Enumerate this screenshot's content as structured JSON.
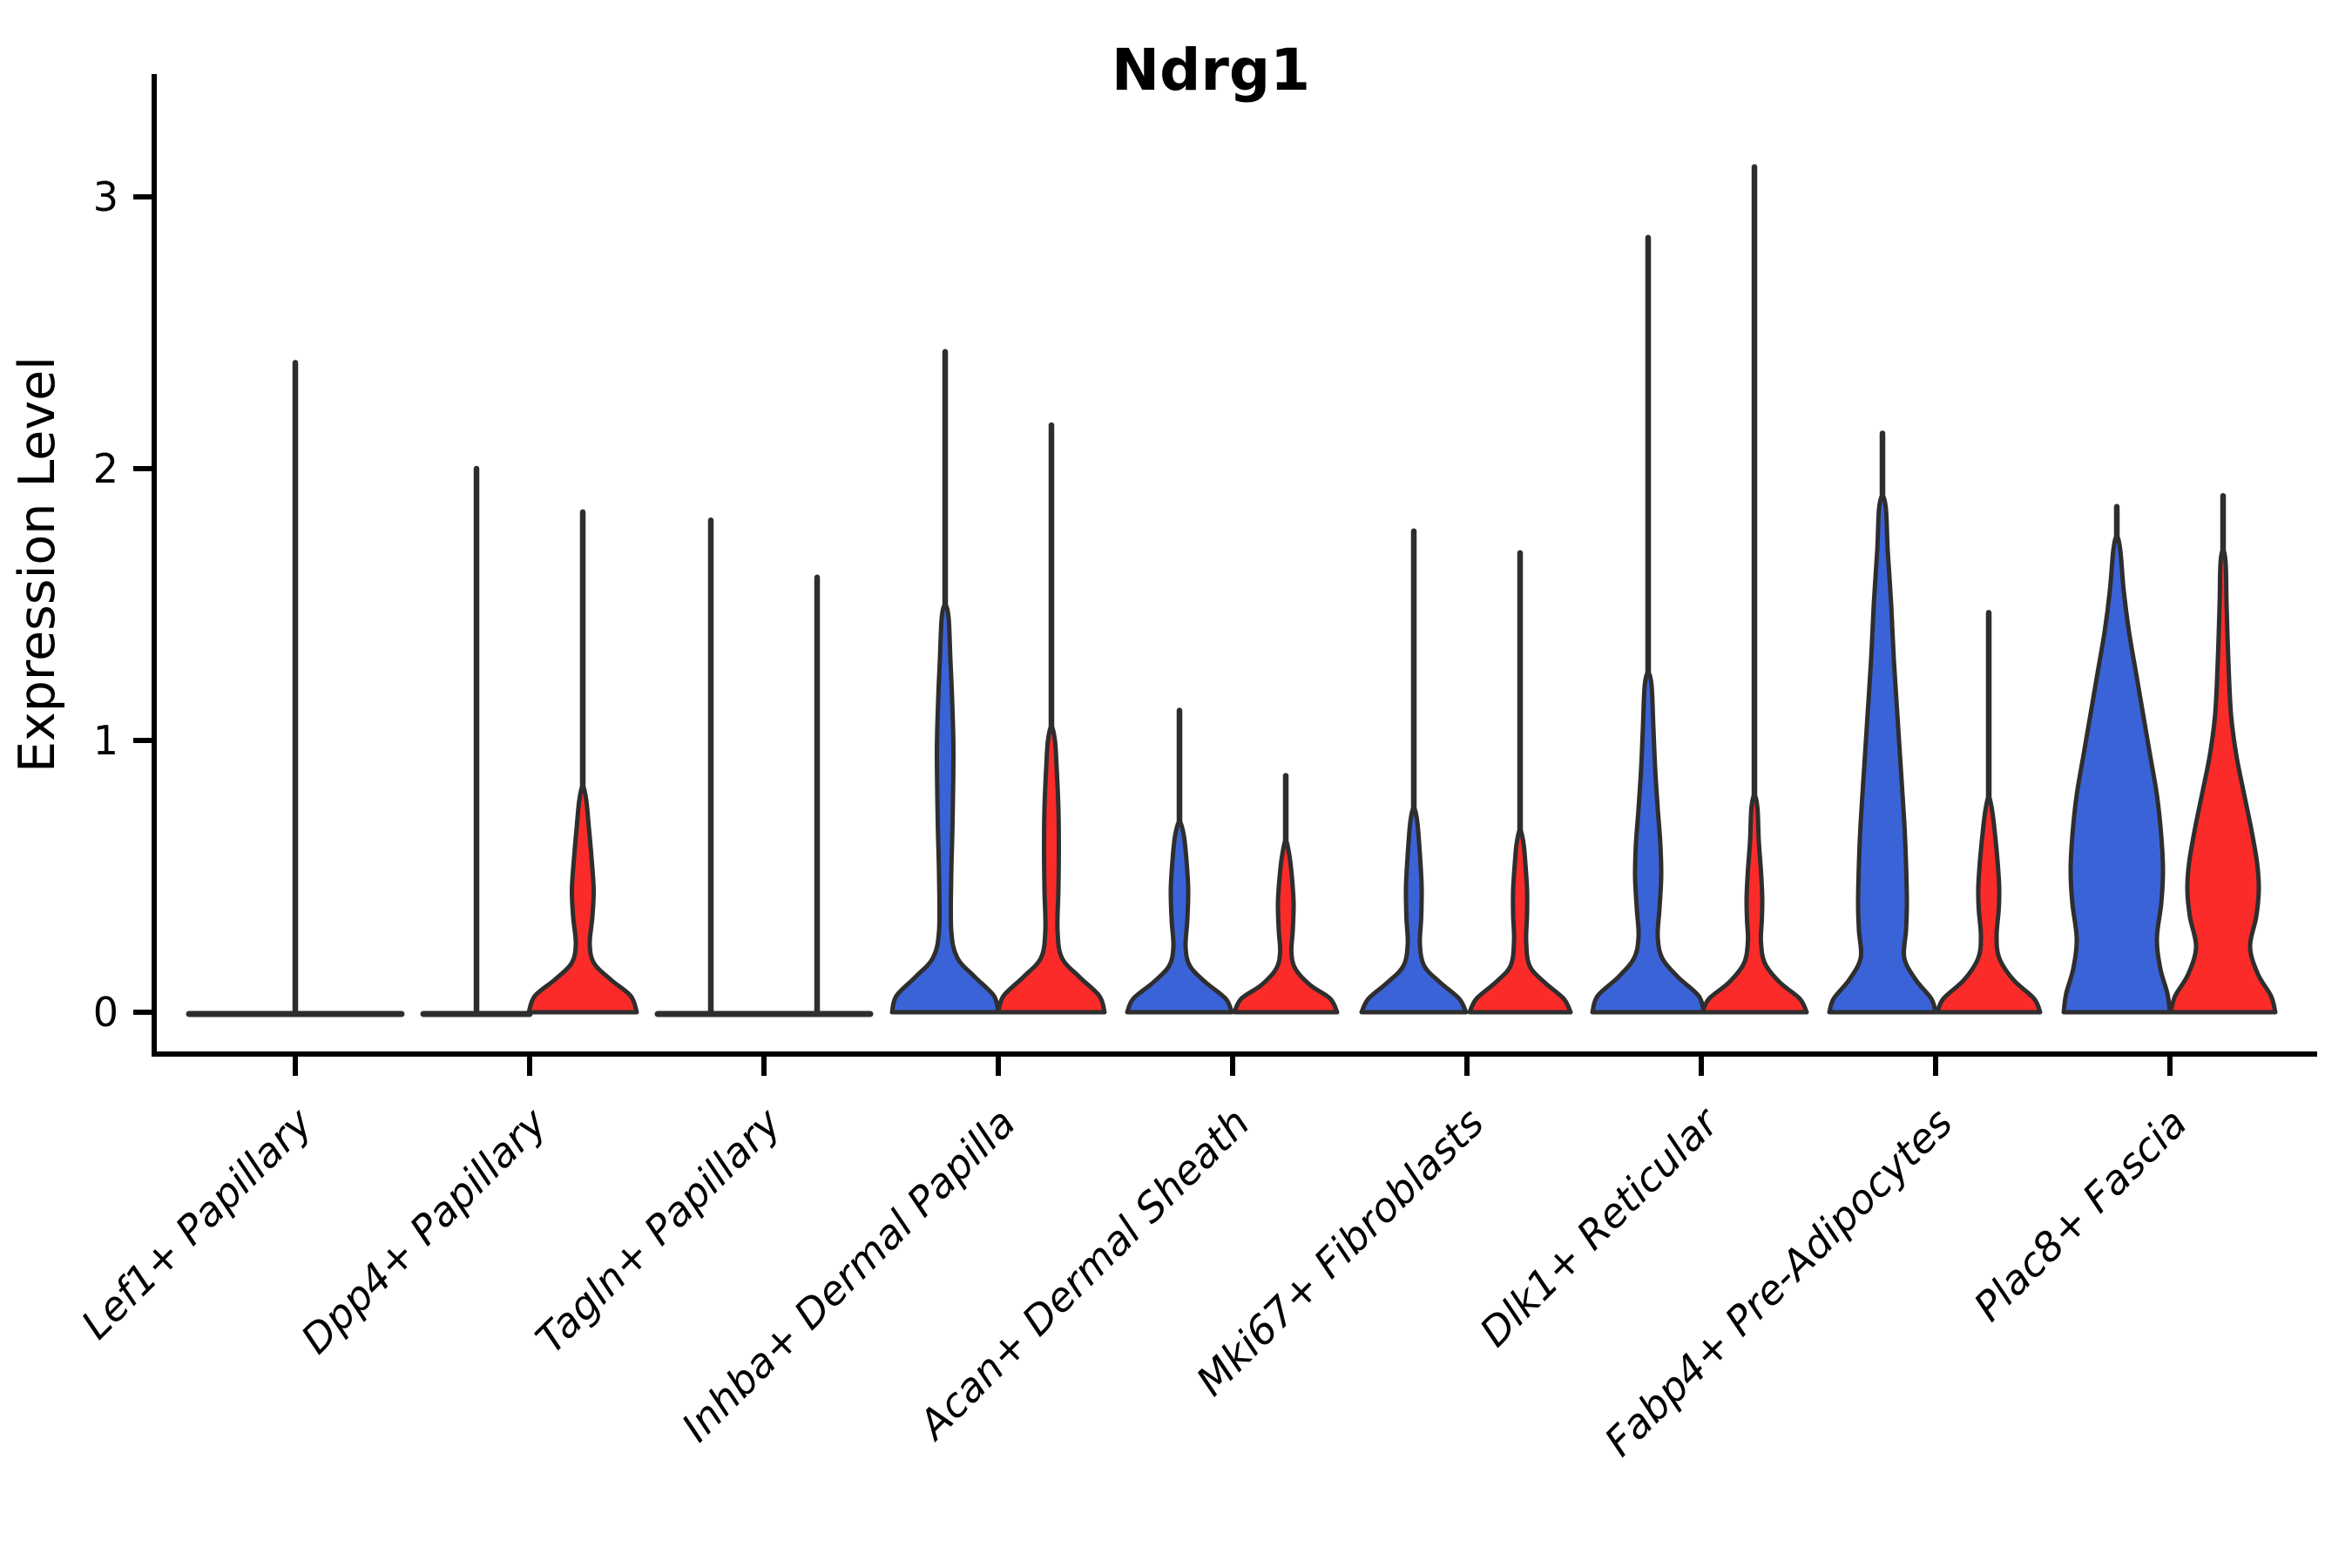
{
  "chart_data": {
    "type": "violin",
    "title": "Ndrg1",
    "ylabel": "Expression Level",
    "xlabel": "",
    "yticks": [
      "0",
      "1",
      "2",
      "3"
    ],
    "ylim": [
      -0.15,
      3.45
    ],
    "grid": false,
    "legend": null,
    "colors": {
      "split_blue": "#3B63D8",
      "split_red": "#FA2B28",
      "outline": "#2E2E2E",
      "axis": "#000000",
      "background": "#FFFFFF"
    },
    "categories": [
      "Lef1+ Papillary",
      "Dpp4+ Papillary",
      "Tagln+ Papillary",
      "Inhba+ Dermal Papilla",
      "Acan+ Dermal Sheath",
      "Mki67+ Fibroblasts",
      "Dlk1+ Reticular",
      "Fabp4+ Pre-Adipocytes",
      "Plac8+ Fascia"
    ],
    "groups": [
      {
        "category": "Lef1+ Papillary",
        "center_spike_max": 2.39,
        "violins": [
          {
            "split": "blue",
            "flat": true,
            "max_expression": 0,
            "density_profile": []
          },
          {
            "split": "red",
            "flat": true,
            "max_expression": 0,
            "density_profile": []
          }
        ]
      },
      {
        "category": "Dpp4+ Papillary",
        "center_spike_max": null,
        "violins": [
          {
            "split": "blue",
            "flat": true,
            "max_expression": 2.0,
            "density_profile": []
          },
          {
            "split": "red",
            "flat": false,
            "max_expression": 1.84,
            "density_profile": [
              [
                0,
                62
              ],
              [
                0.06,
                55
              ],
              [
                0.12,
                32
              ],
              [
                0.18,
                13
              ],
              [
                0.25,
                8
              ],
              [
                0.35,
                11
              ],
              [
                0.45,
                12.5
              ],
              [
                0.57,
                10
              ],
              [
                0.68,
                7
              ],
              [
                0.78,
                4
              ]
            ]
          }
        ]
      },
      {
        "category": "Tagln+ Papillary",
        "center_spike_max": null,
        "violins": [
          {
            "split": "blue",
            "flat": true,
            "max_expression": 1.81,
            "density_profile": []
          },
          {
            "split": "red",
            "flat": true,
            "max_expression": 1.6,
            "density_profile": []
          }
        ]
      },
      {
        "category": "Inhba+ Dermal Papilla",
        "center_spike_max": null,
        "violins": [
          {
            "split": "blue",
            "flat": false,
            "max_expression": 2.43,
            "density_profile": [
              [
                0,
                61
              ],
              [
                0.06,
                56
              ],
              [
                0.13,
                34
              ],
              [
                0.2,
                14
              ],
              [
                0.3,
                7
              ],
              [
                0.5,
                7
              ],
              [
                0.7,
                8.5
              ],
              [
                0.96,
                9.5
              ],
              [
                1.15,
                8
              ],
              [
                1.3,
                6
              ],
              [
                1.45,
                4
              ]
            ]
          },
          {
            "split": "red",
            "flat": false,
            "max_expression": 2.16,
            "density_profile": [
              [
                0,
                61
              ],
              [
                0.06,
                55
              ],
              [
                0.13,
                32
              ],
              [
                0.2,
                12
              ],
              [
                0.3,
                7
              ],
              [
                0.45,
                8
              ],
              [
                0.6,
                8.5
              ],
              [
                0.75,
                8
              ],
              [
                0.9,
                6
              ],
              [
                1.0,
                4
              ]
            ]
          }
        ]
      },
      {
        "category": "Acan+ Dermal Sheath",
        "center_spike_max": null,
        "violins": [
          {
            "split": "blue",
            "flat": false,
            "max_expression": 1.11,
            "density_profile": [
              [
                0,
                60
              ],
              [
                0.05,
                53
              ],
              [
                0.11,
                30
              ],
              [
                0.17,
                12
              ],
              [
                0.24,
                7
              ],
              [
                0.34,
                9
              ],
              [
                0.45,
                10
              ],
              [
                0.56,
                8
              ],
              [
                0.65,
                5
              ]
            ]
          },
          {
            "split": "red",
            "flat": false,
            "max_expression": 0.87,
            "density_profile": [
              [
                0,
                59
              ],
              [
                0.05,
                51
              ],
              [
                0.1,
                28
              ],
              [
                0.16,
                11
              ],
              [
                0.22,
                6.5
              ],
              [
                0.3,
                8
              ],
              [
                0.4,
                9
              ],
              [
                0.5,
                7
              ],
              [
                0.58,
                4
              ]
            ]
          }
        ]
      },
      {
        "category": "Mki67+ Fibroblasts",
        "center_spike_max": null,
        "violins": [
          {
            "split": "blue",
            "flat": false,
            "max_expression": 1.77,
            "density_profile": [
              [
                0,
                60
              ],
              [
                0.05,
                52
              ],
              [
                0.11,
                30
              ],
              [
                0.17,
                12
              ],
              [
                0.25,
                7
              ],
              [
                0.35,
                8.5
              ],
              [
                0.46,
                9
              ],
              [
                0.58,
                7
              ],
              [
                0.7,
                4
              ]
            ]
          },
          {
            "split": "red",
            "flat": false,
            "max_expression": 1.69,
            "density_profile": [
              [
                0,
                58
              ],
              [
                0.05,
                50
              ],
              [
                0.11,
                28
              ],
              [
                0.17,
                11
              ],
              [
                0.26,
                7
              ],
              [
                0.36,
                8
              ],
              [
                0.45,
                8
              ],
              [
                0.55,
                6
              ],
              [
                0.62,
                4
              ]
            ]
          }
        ]
      },
      {
        "category": "Dlk1+ Reticular",
        "center_spike_max": null,
        "violins": [
          {
            "split": "blue",
            "flat": false,
            "max_expression": 2.85,
            "density_profile": [
              [
                0,
                64
              ],
              [
                0.06,
                58
              ],
              [
                0.13,
                34
              ],
              [
                0.2,
                16
              ],
              [
                0.28,
                11
              ],
              [
                0.38,
                13
              ],
              [
                0.5,
                15
              ],
              [
                0.62,
                14
              ],
              [
                0.75,
                11
              ],
              [
                0.9,
                8
              ],
              [
                1.05,
                6
              ],
              [
                1.2,
                4
              ]
            ]
          },
          {
            "split": "red",
            "flat": false,
            "max_expression": 3.11,
            "density_profile": [
              [
                0,
                60
              ],
              [
                0.05,
                52
              ],
              [
                0.11,
                29
              ],
              [
                0.18,
                12
              ],
              [
                0.26,
                7.5
              ],
              [
                0.34,
                8.5
              ],
              [
                0.42,
                9
              ],
              [
                0.52,
                7.5
              ],
              [
                0.63,
                5
              ],
              [
                0.75,
                3.5
              ]
            ]
          }
        ]
      },
      {
        "category": "Fabp4+ Pre-Adipocytes",
        "center_spike_max": null,
        "violins": [
          {
            "split": "blue",
            "flat": false,
            "max_expression": 2.13,
            "density_profile": [
              [
                0,
                61
              ],
              [
                0.05,
                56
              ],
              [
                0.12,
                38
              ],
              [
                0.2,
                25
              ],
              [
                0.3,
                27
              ],
              [
                0.4,
                28
              ],
              [
                0.55,
                27
              ],
              [
                0.7,
                25
              ],
              [
                0.9,
                21
              ],
              [
                1.1,
                17
              ],
              [
                1.3,
                13
              ],
              [
                1.5,
                10
              ],
              [
                1.7,
                6
              ],
              [
                1.85,
                4
              ]
            ]
          },
          {
            "split": "red",
            "flat": false,
            "max_expression": 1.47,
            "density_profile": [
              [
                0,
                59
              ],
              [
                0.05,
                52
              ],
              [
                0.12,
                28
              ],
              [
                0.2,
                12
              ],
              [
                0.28,
                9
              ],
              [
                0.38,
                11.5
              ],
              [
                0.46,
                12
              ],
              [
                0.56,
                10
              ],
              [
                0.66,
                7
              ],
              [
                0.74,
                4
              ]
            ]
          }
        ]
      },
      {
        "category": "Plac8+ Fascia",
        "center_spike_max": null,
        "violins": [
          {
            "split": "blue",
            "flat": false,
            "max_expression": 1.86,
            "density_profile": [
              [
                0,
                61
              ],
              [
                0.07,
                58
              ],
              [
                0.16,
                50
              ],
              [
                0.27,
                46
              ],
              [
                0.4,
                51
              ],
              [
                0.52,
                53
              ],
              [
                0.65,
                51
              ],
              [
                0.8,
                46
              ],
              [
                0.95,
                38
              ],
              [
                1.1,
                30
              ],
              [
                1.25,
                22
              ],
              [
                1.4,
                14
              ],
              [
                1.55,
                8
              ],
              [
                1.7,
                4
              ]
            ]
          },
          {
            "split": "red",
            "flat": false,
            "max_expression": 1.9,
            "density_profile": [
              [
                0,
                60
              ],
              [
                0.06,
                55
              ],
              [
                0.14,
                40
              ],
              [
                0.24,
                31
              ],
              [
                0.35,
                38
              ],
              [
                0.45,
                41
              ],
              [
                0.55,
                39
              ],
              [
                0.68,
                32
              ],
              [
                0.82,
                23
              ],
              [
                0.95,
                15
              ],
              [
                1.1,
                9
              ],
              [
                1.3,
                6
              ],
              [
                1.5,
                4
              ],
              [
                1.65,
                3
              ]
            ]
          }
        ]
      }
    ]
  }
}
